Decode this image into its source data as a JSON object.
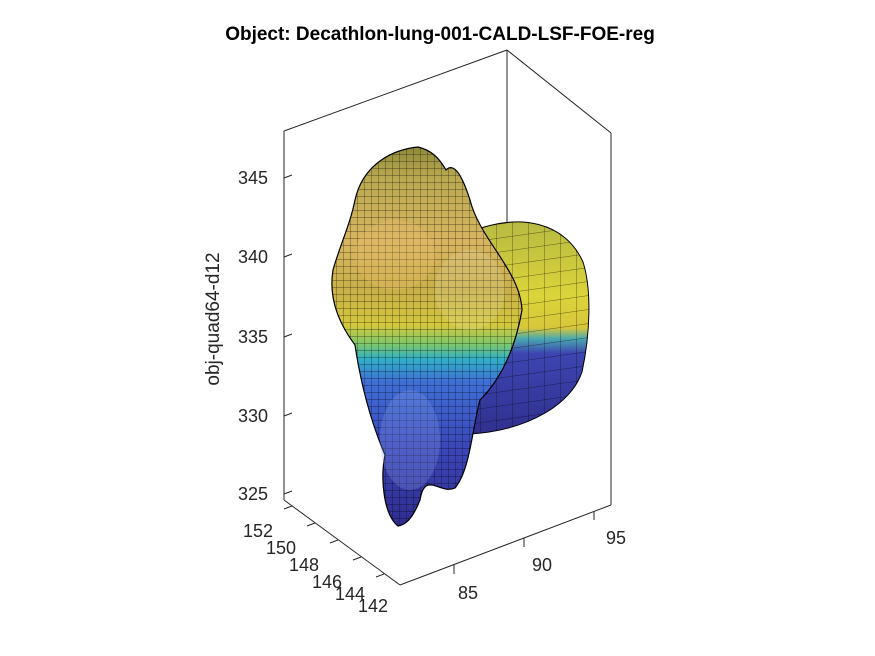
{
  "chart_data": {
    "type": "surface3d",
    "title": "Object: Decathlon-lung-001-CALD-LSF-FOE-reg",
    "zlabel": "obj-quad64-d12",
    "xlabel": "",
    "ylabel": "",
    "x_axis": {
      "ticks": [
        85,
        90,
        95
      ],
      "range": [
        82,
        97
      ]
    },
    "y_axis": {
      "ticks": [
        142,
        144,
        146,
        148,
        150,
        152
      ],
      "range": [
        141.5,
        152.5
      ]
    },
    "z_axis": {
      "ticks": [
        325,
        330,
        335,
        340,
        345
      ],
      "range": [
        324,
        347
      ]
    },
    "colormap": "parula",
    "surface": "mesh with black quad grid lines",
    "grid": false
  },
  "colors": {
    "low": "#3a36b8",
    "mid": "#2db3c7",
    "high": "#e6d23a",
    "edge": "#000000"
  }
}
